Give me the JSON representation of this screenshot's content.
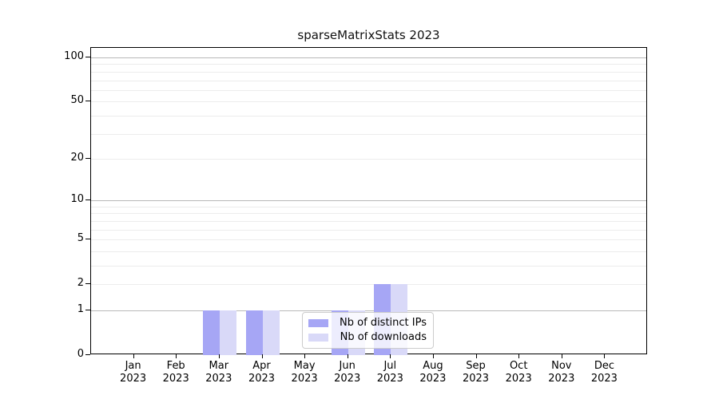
{
  "chart_data": {
    "type": "bar",
    "title": "sparseMatrixStats 2023",
    "categories": [
      "Jan",
      "Feb",
      "Mar",
      "Apr",
      "May",
      "Jun",
      "Jul",
      "Aug",
      "Sep",
      "Oct",
      "Nov",
      "Dec"
    ],
    "category_year": "2023",
    "series": [
      {
        "name": "Nb of distinct IPs",
        "color": "#a6a6f5",
        "values": [
          0,
          0,
          1,
          1,
          0,
          1,
          2,
          0,
          0,
          0,
          0,
          0
        ]
      },
      {
        "name": "Nb of downloads",
        "color": "#d9d9f8",
        "values": [
          0,
          0,
          1,
          1,
          0,
          1,
          2,
          0,
          0,
          0,
          0,
          0
        ]
      }
    ],
    "y_axis": {
      "scale": "log10(1+y)",
      "tick_values": [
        0,
        1,
        2,
        5,
        10,
        20,
        50,
        100
      ],
      "major_gridlines": [
        1,
        10,
        100
      ],
      "minor_gridlines": [
        2,
        3,
        4,
        5,
        6,
        7,
        8,
        9,
        20,
        30,
        40,
        50,
        60,
        70,
        80,
        90
      ]
    },
    "legend": {
      "position": "lower-center"
    },
    "colors": {
      "grid_major": "#b9b9b9",
      "grid_minor": "#ececec",
      "axis": "#000000",
      "background": "#ffffff"
    }
  }
}
